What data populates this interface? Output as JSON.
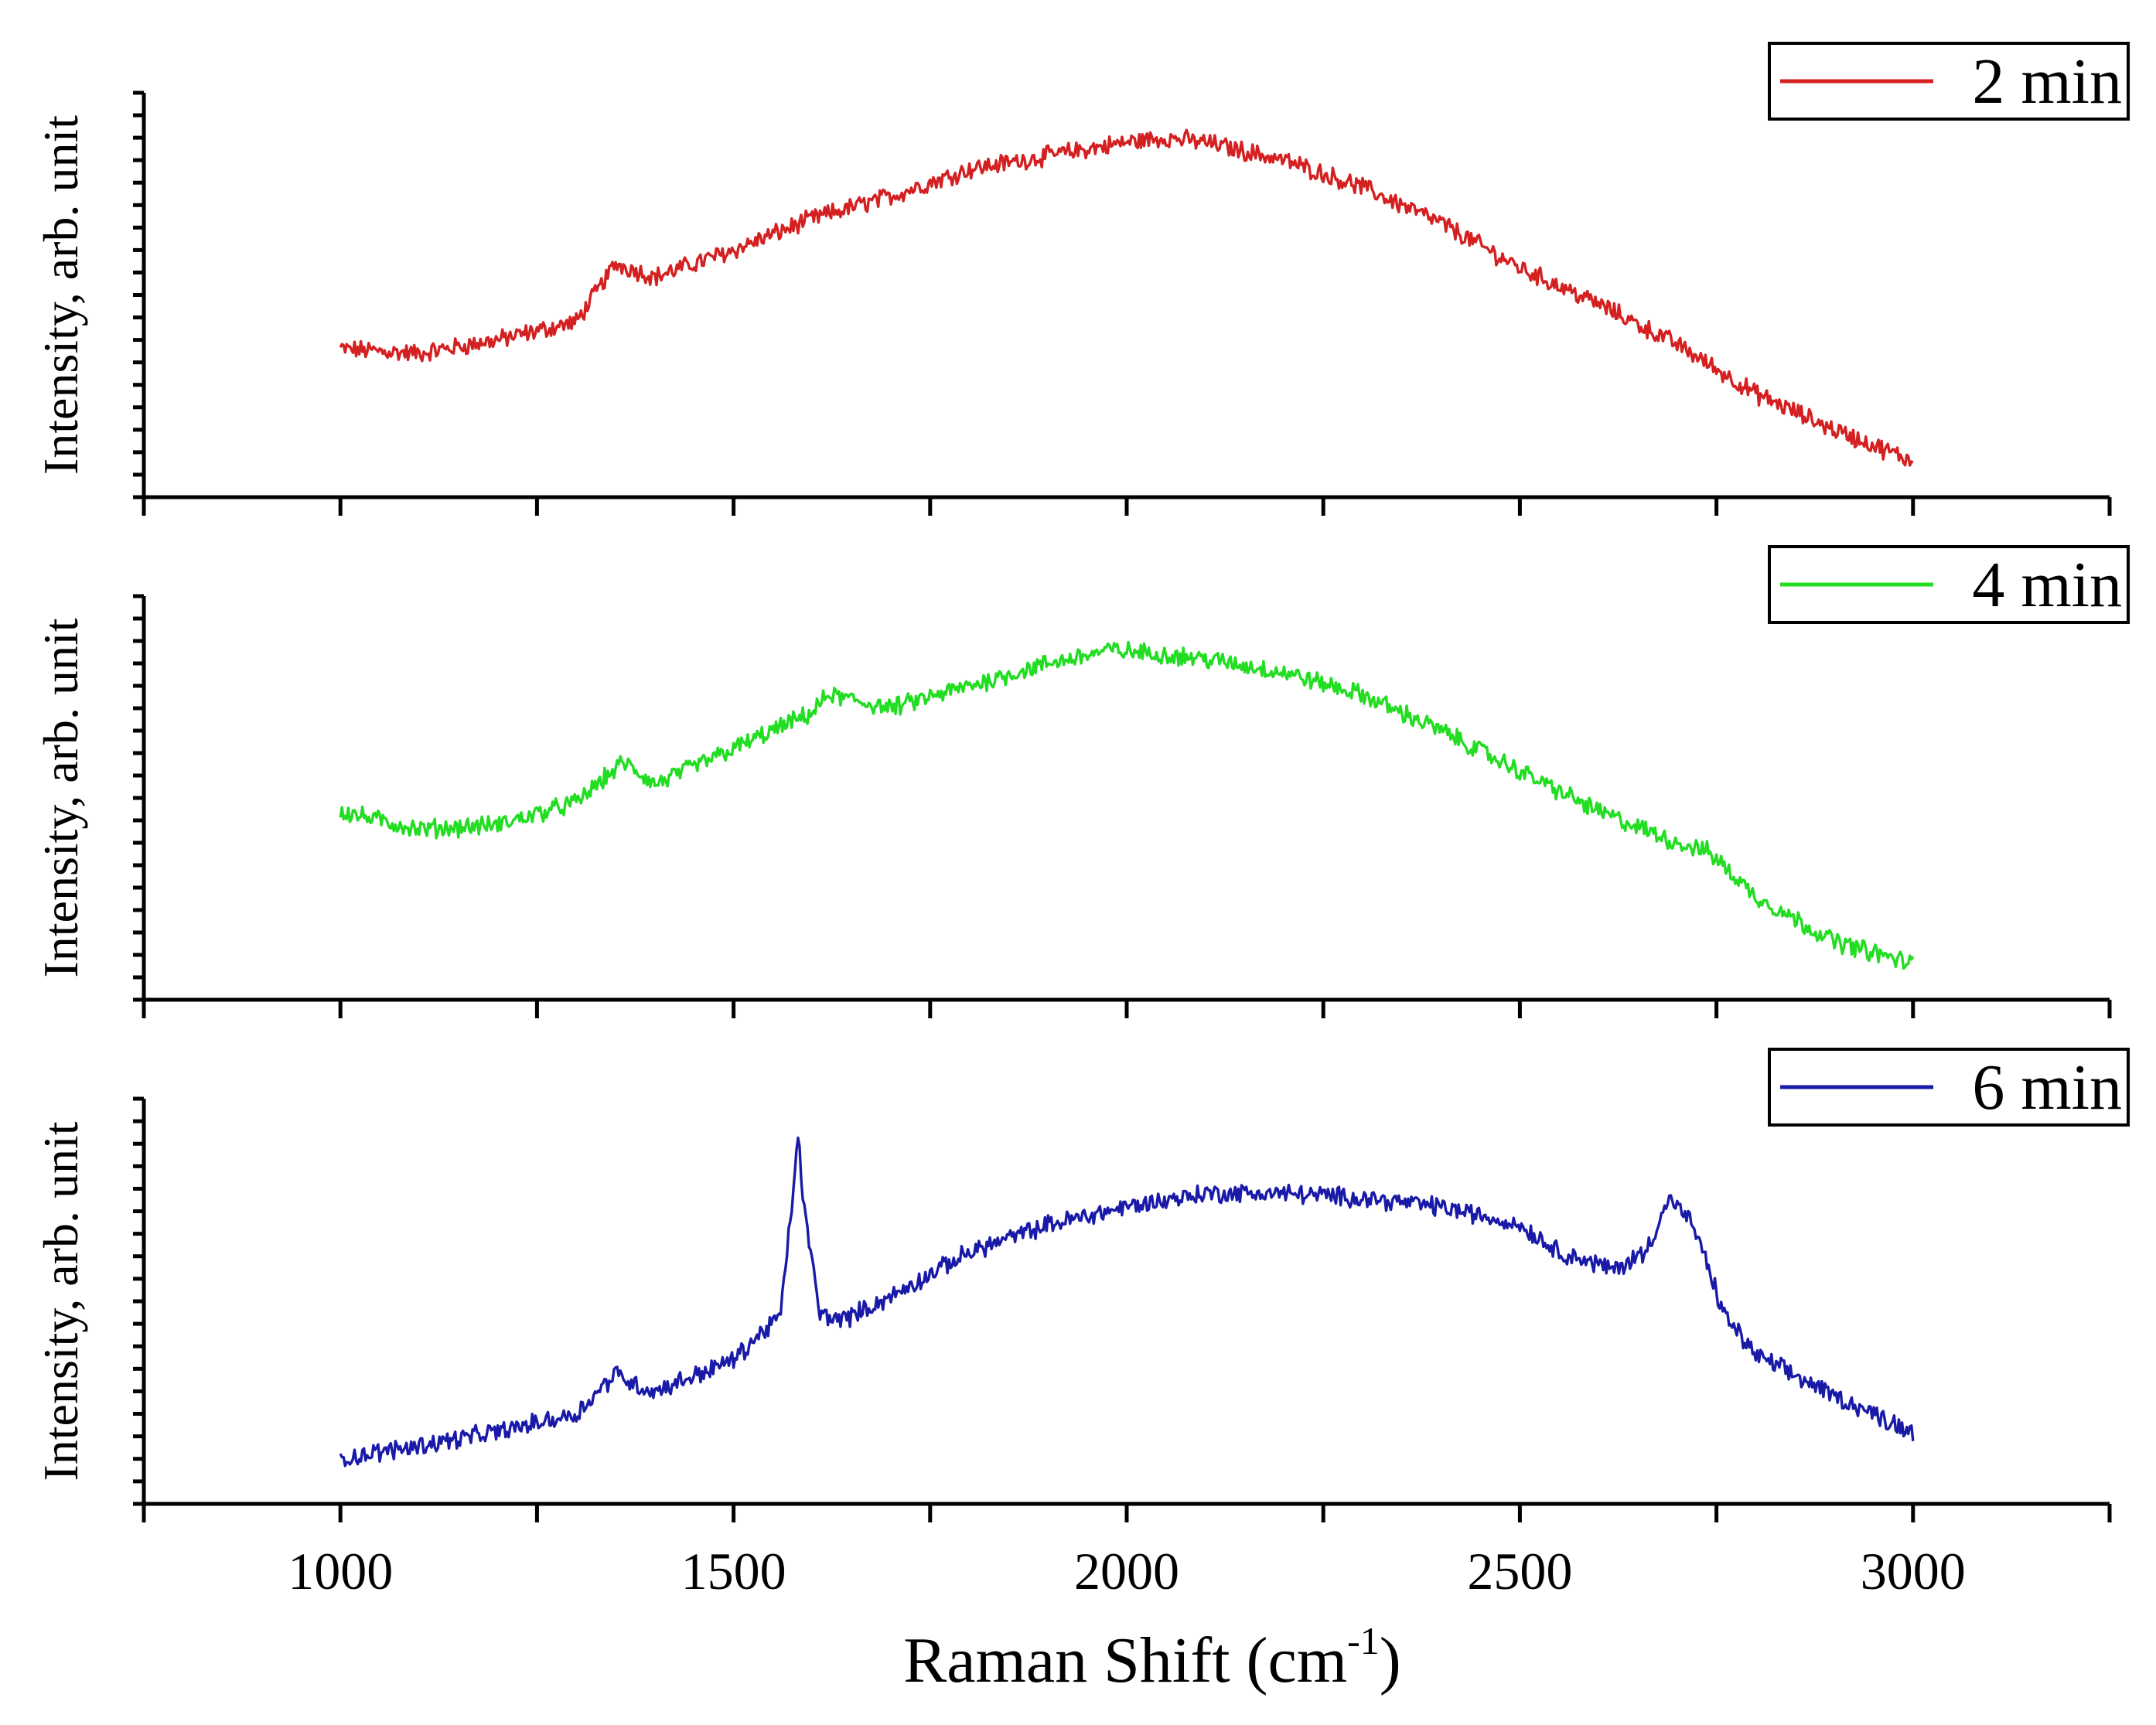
{
  "chart_data": {
    "type": "line",
    "xlabel": "Raman Shift (cm",
    "xlabel_superscript": "-1",
    "xlabel_close": ")",
    "xlim": [
      750,
      3250
    ],
    "xticks": [
      1000,
      1500,
      2000,
      2500,
      3000
    ],
    "x_minor_ticks": [
      750,
      1250,
      1750,
      2250,
      2750,
      3250
    ],
    "ylim": [
      0,
      9
    ],
    "y_tick_count": 18,
    "panels": [
      {
        "ylabel": "Intensity, arb. unit",
        "series": [
          {
            "name": "2 min",
            "color": "#d42020",
            "x": [
              1000,
              1100,
              1200,
              1300,
              1350,
              1400,
              1500,
              1600,
              1700,
              1800,
              1900,
              2000,
              2050,
              2100,
              2200,
              2300,
              2400,
              2500,
              2600,
              2700,
              2800,
              2900,
              3000
            ],
            "y": [
              3.3,
              3.2,
              3.5,
              3.9,
              5.2,
              4.9,
              5.5,
              6.2,
              6.7,
              7.3,
              7.6,
              7.9,
              8.0,
              7.9,
              7.5,
              6.9,
              6.1,
              5.1,
              4.3,
              3.4,
              2.3,
              1.5,
              0.8
            ]
          }
        ]
      },
      {
        "ylabel": "Intensity, arb. unit",
        "series": [
          {
            "name": "4 min",
            "color": "#22dd22",
            "x": [
              1000,
              1100,
              1200,
              1300,
              1360,
              1400,
              1500,
              1600,
              1620,
              1700,
              1800,
              1900,
              1980,
              2050,
              2100,
              2200,
              2300,
              2400,
              2500,
              2600,
              2700,
              2740,
              2800,
              2900,
              3000
            ],
            "y": [
              4.2,
              3.8,
              3.9,
              4.4,
              5.3,
              4.8,
              5.6,
              6.4,
              6.8,
              6.5,
              7.0,
              7.5,
              7.8,
              7.7,
              7.6,
              7.3,
              6.8,
              6.0,
              5.1,
              4.2,
              3.5,
              3.3,
              2.3,
              1.3,
              0.8
            ]
          }
        ]
      },
      {
        "ylabel": "Intensity, arb. unit",
        "series": [
          {
            "name": "6 min",
            "color": "#1a1aa8",
            "x": [
              1000,
              1100,
              1200,
              1300,
              1350,
              1380,
              1400,
              1500,
              1560,
              1575,
              1582,
              1590,
              1610,
              1640,
              1700,
              1800,
              1900,
              2000,
              2100,
              2200,
              2300,
              2400,
              2500,
              2550,
              2620,
              2660,
              2690,
              2720,
              2760,
              2800,
              2900,
              3000
            ],
            "y": [
              1.0,
              1.3,
              1.6,
              2.0,
              2.9,
              2.6,
              2.5,
              3.2,
              4.2,
              6.8,
              8.2,
              6.5,
              4.2,
              4.1,
              4.6,
              5.6,
              6.2,
              6.6,
              6.9,
              6.9,
              6.8,
              6.6,
              6.2,
              5.6,
              5.2,
              5.6,
              6.8,
              6.2,
              4.2,
              3.3,
              2.4,
              1.6
            ]
          }
        ]
      }
    ]
  }
}
